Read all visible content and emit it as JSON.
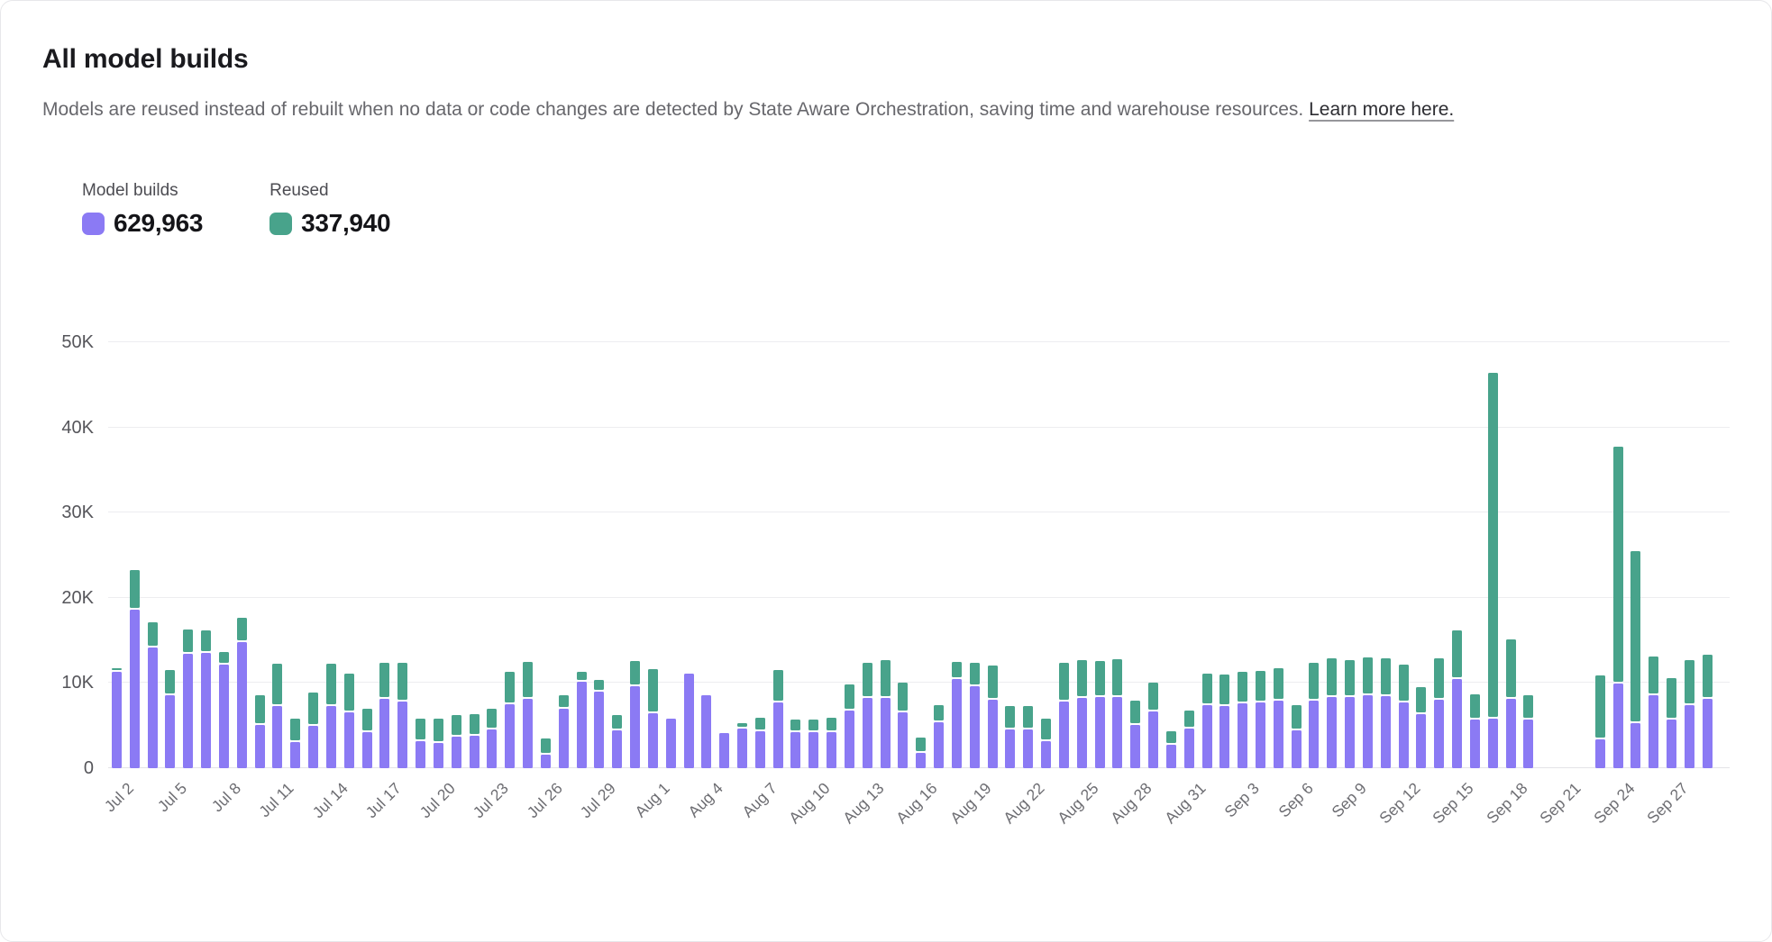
{
  "card": {
    "title": "All model builds",
    "description": "Models are reused instead of rebuilt when no data or code changes are detected by State Aware Orchestration, saving time and warehouse resources.",
    "link_text": "Learn more here."
  },
  "legend": [
    {
      "label": "Model builds",
      "value": "629,963",
      "color": "#8b7af4"
    },
    {
      "label": "Reused",
      "value": "337,940",
      "color": "#48a38b"
    }
  ],
  "chart_data": {
    "type": "bar",
    "stacked": true,
    "title": "All model builds",
    "xlabel": "",
    "ylabel": "",
    "ylim": [
      0,
      50000
    ],
    "ytick_labels": [
      "0",
      "10K",
      "20K",
      "30K",
      "40K",
      "50K"
    ],
    "grid": true,
    "x_tick_every": 3,
    "categories": [
      "Jul 2",
      "Jul 3",
      "Jul 4",
      "Jul 5",
      "Jul 6",
      "Jul 7",
      "Jul 8",
      "Jul 9",
      "Jul 10",
      "Jul 11",
      "Jul 12",
      "Jul 13",
      "Jul 14",
      "Jul 15",
      "Jul 16",
      "Jul 17",
      "Jul 18",
      "Jul 19",
      "Jul 20",
      "Jul 21",
      "Jul 22",
      "Jul 23",
      "Jul 24",
      "Jul 25",
      "Jul 26",
      "Jul 27",
      "Jul 28",
      "Jul 29",
      "Jul 30",
      "Jul 31",
      "Aug 1",
      "Aug 2",
      "Aug 3",
      "Aug 4",
      "Aug 5",
      "Aug 6",
      "Aug 7",
      "Aug 8",
      "Aug 9",
      "Aug 10",
      "Aug 11",
      "Aug 12",
      "Aug 13",
      "Aug 14",
      "Aug 15",
      "Aug 16",
      "Aug 17",
      "Aug 18",
      "Aug 19",
      "Aug 20",
      "Aug 21",
      "Aug 22",
      "Aug 23",
      "Aug 24",
      "Aug 25",
      "Aug 26",
      "Aug 27",
      "Aug 28",
      "Aug 29",
      "Aug 30",
      "Aug 31",
      "Sep 1",
      "Sep 2",
      "Sep 3",
      "Sep 4",
      "Sep 5",
      "Sep 6",
      "Sep 7",
      "Sep 8",
      "Sep 9",
      "Sep 10",
      "Sep 11",
      "Sep 12",
      "Sep 13",
      "Sep 14",
      "Sep 15",
      "Sep 16",
      "Sep 17",
      "Sep 18",
      "Sep 19",
      "Sep 20",
      "Sep 21",
      "Sep 22",
      "Sep 23",
      "Sep 24",
      "Sep 25",
      "Sep 26",
      "Sep 27",
      "Sep 28",
      "Sep 29"
    ],
    "series": [
      {
        "name": "Model builds",
        "values": [
          11300,
          18600,
          14200,
          8600,
          13400,
          13500,
          12200,
          14800,
          5100,
          7300,
          3100,
          5000,
          7300,
          6600,
          4200,
          8100,
          7800,
          3200,
          3000,
          3700,
          3800,
          4500,
          7500,
          8100,
          1600,
          7000,
          10200,
          9000,
          4400,
          9600,
          6400,
          5800,
          11100,
          8600,
          4100,
          4600,
          4300,
          7700,
          4200,
          4200,
          4200,
          6800,
          8200,
          8200,
          6600,
          1800,
          5400,
          10500,
          9600,
          8000,
          4500,
          4500,
          3200,
          7800,
          8200,
          8300,
          8300,
          5100,
          6700,
          2800,
          4700,
          7400,
          7300,
          7600,
          7700,
          7900,
          4400,
          7900,
          8400,
          8400,
          8600,
          8500,
          7700,
          6300,
          8000,
          10500,
          5700,
          5800,
          8100,
          5700,
          0,
          0,
          0,
          3400,
          9900,
          5300,
          8600,
          5700,
          7400,
          8100
        ]
      },
      {
        "name": "Reused",
        "values": [
          200,
          4400,
          2700,
          2700,
          2600,
          2400,
          1300,
          2600,
          3300,
          4800,
          2500,
          3700,
          4800,
          4300,
          2500,
          4000,
          4300,
          2400,
          2600,
          2300,
          2300,
          2200,
          3600,
          4100,
          1700,
          1400,
          900,
          1200,
          1600,
          2700,
          5000,
          0,
          0,
          0,
          0,
          400,
          1400,
          3600,
          1300,
          1300,
          1500,
          2900,
          3900,
          4200,
          3300,
          1600,
          1800,
          1800,
          2500,
          3800,
          2500,
          2500,
          2400,
          4300,
          4200,
          4000,
          4200,
          2600,
          3200,
          1400,
          1900,
          3500,
          3500,
          3500,
          3500,
          3600,
          2800,
          4200,
          4300,
          4100,
          4200,
          4200,
          4200,
          3000,
          4600,
          5500,
          2800,
          40400,
          6800,
          2600,
          0,
          0,
          0,
          7300,
          27600,
          20000,
          4300,
          4600,
          5100,
          5000
        ]
      }
    ],
    "legend_position": "top-left"
  }
}
